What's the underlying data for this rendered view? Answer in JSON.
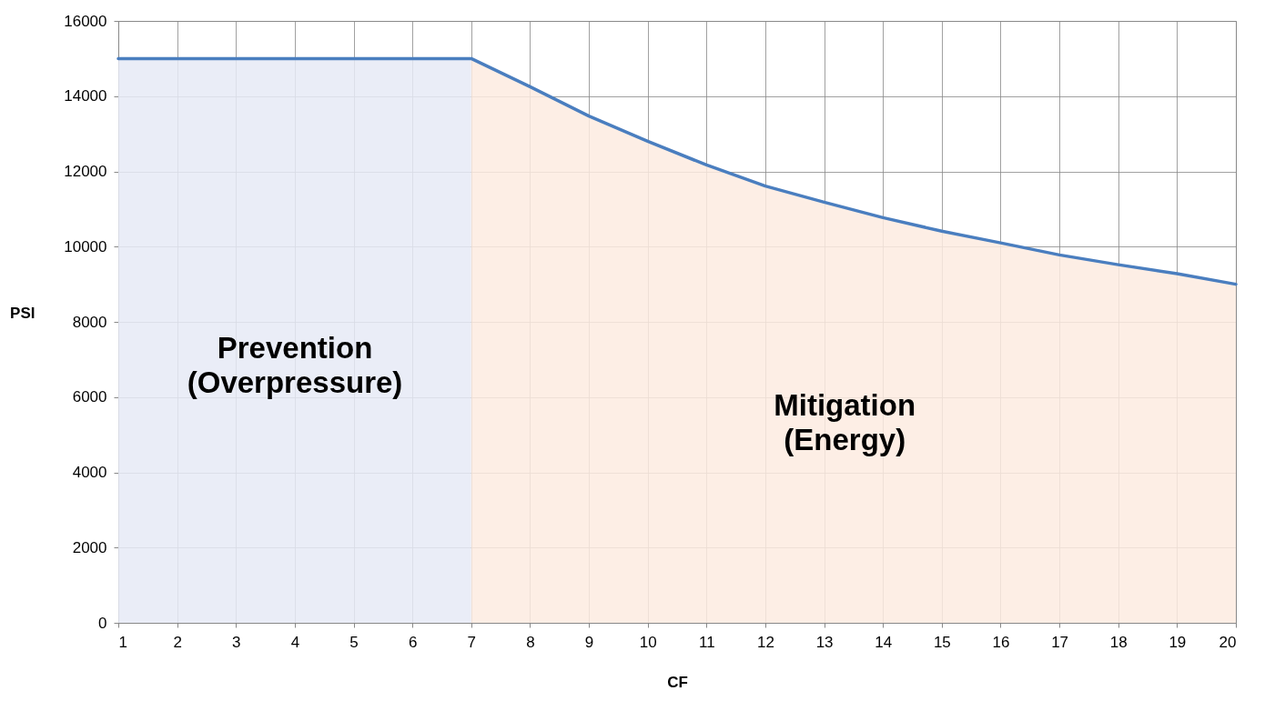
{
  "chart_data": {
    "type": "line",
    "xlabel": "CF",
    "ylabel": "PSI",
    "xlim": [
      1,
      20
    ],
    "xticks": [
      1,
      2,
      3,
      4,
      5,
      6,
      7,
      8,
      9,
      10,
      11,
      12,
      13,
      14,
      15,
      16,
      17,
      18,
      19,
      20
    ],
    "ylim": [
      0,
      16000
    ],
    "yticks": [
      0,
      2000,
      4000,
      6000,
      8000,
      10000,
      12000,
      14000,
      16000
    ],
    "grid": true,
    "marker": "none",
    "line_style": "solid",
    "series": [
      {
        "type": "area",
        "color": "#e6eaf6",
        "x": [
          1,
          7
        ],
        "values": [
          15000,
          15000
        ]
      },
      {
        "type": "area",
        "color": "#fdebe0",
        "x": [
          7,
          8,
          9,
          10,
          11,
          12,
          13,
          14,
          15,
          16,
          17,
          18,
          19,
          20
        ],
        "values": [
          15000,
          14250,
          13470,
          12800,
          12170,
          11610,
          11180,
          10770,
          10410,
          10100,
          9780,
          9520,
          9280,
          9000
        ]
      },
      {
        "color": "#4a7ebf",
        "x": [
          1,
          7,
          8,
          9,
          10,
          11,
          12,
          13,
          14,
          15,
          16,
          17,
          18,
          19,
          20
        ],
        "values": [
          15000,
          15000,
          14250,
          13470,
          12800,
          12170,
          11610,
          11180,
          10770,
          10410,
          10100,
          9780,
          9520,
          9280,
          9000
        ]
      }
    ],
    "annotations": [
      "Prevention (Overpressure)",
      "Mitigation (Energy)"
    ]
  }
}
